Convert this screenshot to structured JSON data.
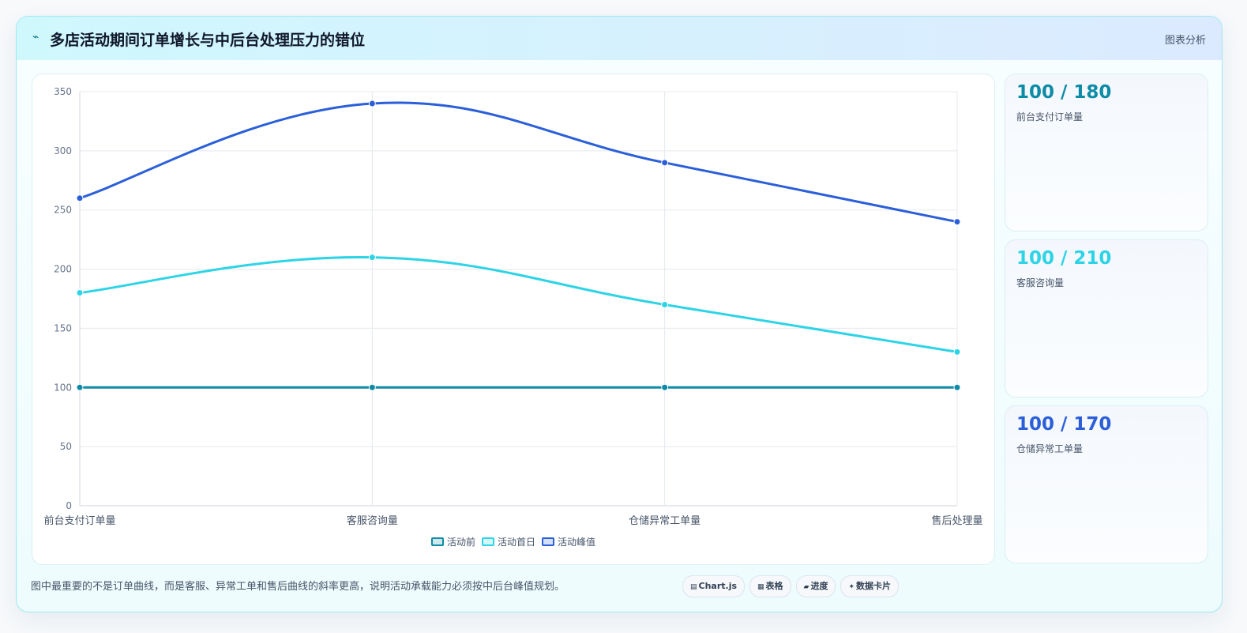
{
  "header": {
    "title": "多店活动期间订单增长与中后台处理压力的错位",
    "tag": "图表分析"
  },
  "chart_data": {
    "type": "line",
    "categories": [
      "前台支付订单量",
      "客服咨询量",
      "仓储异常工单量",
      "售后处理量"
    ],
    "ylim": [
      0,
      350
    ],
    "yticks": [
      0,
      50,
      100,
      150,
      200,
      250,
      300,
      350
    ],
    "grid": true,
    "legend_position": "bottom",
    "series": [
      {
        "name": "活动前",
        "color": "#0e8ba6",
        "values": [
          100,
          100,
          100,
          100
        ]
      },
      {
        "name": "活动首日",
        "color": "#2dd4e6",
        "values": [
          180,
          210,
          170,
          130
        ]
      },
      {
        "name": "活动峰值",
        "color": "#2b5fd9",
        "values": [
          260,
          340,
          290,
          240
        ]
      }
    ]
  },
  "stats": [
    {
      "value": "100 / 180",
      "label": "前台支付订单量",
      "color": "#0e8ba6"
    },
    {
      "value": "100 / 210",
      "label": "客服咨询量",
      "color": "#2dd4e6"
    },
    {
      "value": "100 / 170",
      "label": "仓储异常工单量",
      "color": "#2b5fd9"
    }
  ],
  "footer": {
    "note": "图中最重要的不是订单曲线，而是客服、异常工单和售后曲线的斜率更高，说明活动承载能力必须按中后台峰值规划。",
    "pills": [
      {
        "icon": "▤",
        "label": "Chart.js"
      },
      {
        "icon": "▦",
        "label": "表格"
      },
      {
        "icon": "▰",
        "label": "进度"
      },
      {
        "icon": "✦",
        "label": "数据卡片"
      }
    ]
  }
}
